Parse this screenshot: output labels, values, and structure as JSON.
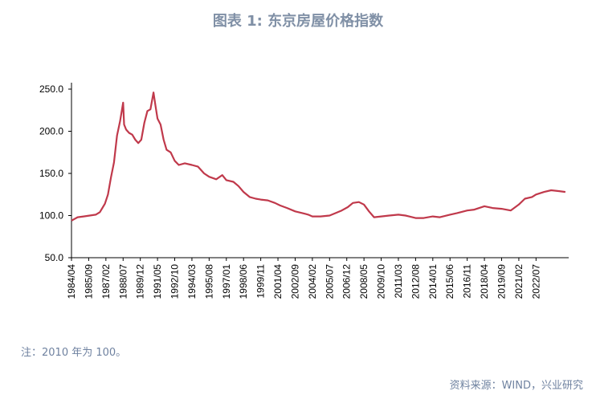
{
  "chart_data": {
    "type": "line",
    "title": "图表 1:  东京房屋价格指数",
    "xlabel": "",
    "ylabel": "",
    "ylim": [
      50,
      250
    ],
    "yticks": [
      "50.0",
      "100.0",
      "150.0",
      "200.0",
      "250.0"
    ],
    "xticks": [
      "1984/04",
      "1985/09",
      "1987/02",
      "1988/07",
      "1989/12",
      "1991/05",
      "1992/10",
      "1994/03",
      "1995/08",
      "1997/01",
      "1998/06",
      "1999/11",
      "2001/04",
      "2002/09",
      "2004/02",
      "2005/07",
      "2006/12",
      "2008/05",
      "2009/10",
      "2011/03",
      "2012/08",
      "2014/01",
      "2015/06",
      "2016/11",
      "2018/04",
      "2019/09",
      "2021/02",
      "2022/07"
    ],
    "xrange": [
      "1984/04",
      "2024/12"
    ],
    "grid": false,
    "series": [
      {
        "name": "东京房屋价格指数",
        "color": "#c0394b",
        "points": [
          [
            "1984/04",
            94
          ],
          [
            "1984/10",
            98
          ],
          [
            "1985/04",
            99
          ],
          [
            "1985/10",
            100
          ],
          [
            "1986/04",
            101
          ],
          [
            "1986/08",
            104
          ],
          [
            "1987/01",
            114
          ],
          [
            "1987/04",
            125
          ],
          [
            "1987/07",
            145
          ],
          [
            "1987/10",
            163
          ],
          [
            "1988/01",
            195
          ],
          [
            "1988/04",
            212
          ],
          [
            "1988/07",
            234
          ],
          [
            "1988/08",
            208
          ],
          [
            "1988/10",
            202
          ],
          [
            "1989/01",
            198
          ],
          [
            "1989/04",
            196
          ],
          [
            "1989/07",
            190
          ],
          [
            "1989/10",
            186
          ],
          [
            "1990/01",
            190
          ],
          [
            "1990/04",
            210
          ],
          [
            "1990/07",
            224
          ],
          [
            "1990/10",
            226
          ],
          [
            "1991/01",
            246
          ],
          [
            "1991/03",
            230
          ],
          [
            "1991/05",
            215
          ],
          [
            "1991/08",
            208
          ],
          [
            "1991/11",
            190
          ],
          [
            "1992/02",
            178
          ],
          [
            "1992/06",
            175
          ],
          [
            "1992/10",
            165
          ],
          [
            "1993/02",
            160
          ],
          [
            "1993/08",
            162
          ],
          [
            "1994/03",
            160
          ],
          [
            "1994/09",
            158
          ],
          [
            "1995/03",
            150
          ],
          [
            "1995/08",
            146
          ],
          [
            "1996/03",
            143
          ],
          [
            "1996/09",
            148
          ],
          [
            "1997/01",
            142
          ],
          [
            "1997/08",
            140
          ],
          [
            "1998/01",
            135
          ],
          [
            "1998/06",
            128
          ],
          [
            "1998/12",
            122
          ],
          [
            "1999/06",
            120
          ],
          [
            "1999/11",
            119
          ],
          [
            "2000/06",
            118
          ],
          [
            "2001/01",
            115
          ],
          [
            "2001/06",
            112
          ],
          [
            "2002/01",
            109
          ],
          [
            "2002/09",
            105
          ],
          [
            "2003/04",
            103
          ],
          [
            "2003/10",
            101
          ],
          [
            "2004/02",
            99
          ],
          [
            "2004/10",
            99
          ],
          [
            "2005/07",
            100
          ],
          [
            "2006/01",
            103
          ],
          [
            "2006/07",
            106
          ],
          [
            "2007/01",
            110
          ],
          [
            "2007/06",
            115
          ],
          [
            "2007/12",
            116
          ],
          [
            "2008/05",
            113
          ],
          [
            "2008/10",
            105
          ],
          [
            "2009/03",
            98
          ],
          [
            "2009/10",
            99
          ],
          [
            "2010/06",
            100
          ],
          [
            "2011/03",
            101
          ],
          [
            "2011/10",
            100
          ],
          [
            "2012/08",
            97
          ],
          [
            "2013/04",
            97
          ],
          [
            "2014/01",
            99
          ],
          [
            "2014/08",
            98
          ],
          [
            "2015/06",
            101
          ],
          [
            "2016/01",
            103
          ],
          [
            "2016/11",
            106
          ],
          [
            "2017/06",
            107
          ],
          [
            "2018/04",
            111
          ],
          [
            "2018/12",
            109
          ],
          [
            "2019/09",
            108
          ],
          [
            "2020/06",
            106
          ],
          [
            "2021/02",
            113
          ],
          [
            "2021/08",
            120
          ],
          [
            "2022/03",
            122
          ],
          [
            "2022/07",
            125
          ],
          [
            "2023/03",
            128
          ],
          [
            "2023/10",
            130
          ],
          [
            "2024/06",
            129
          ],
          [
            "2024/12",
            128
          ]
        ]
      }
    ]
  },
  "note": "注：2010 年为 100。",
  "source": "资料来源：WIND，兴业研究"
}
